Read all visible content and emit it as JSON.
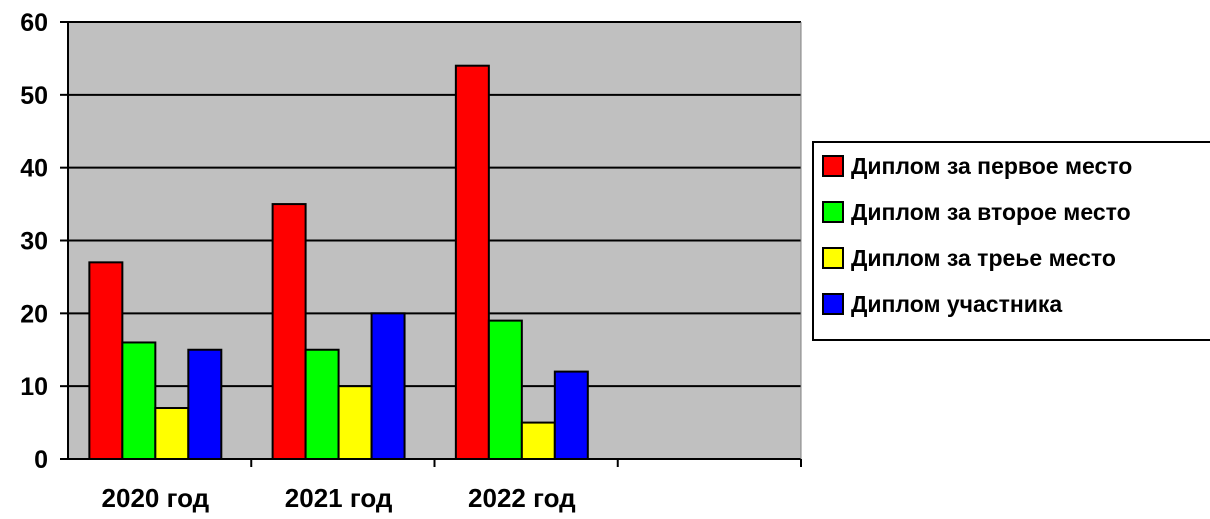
{
  "chart_data": {
    "type": "bar",
    "categories": [
      "2020 год",
      "2021 год",
      "2022 год",
      ""
    ],
    "series": [
      {
        "name": "Диплом за первое место",
        "color": "#ff0000",
        "values": [
          27,
          35,
          54,
          null
        ]
      },
      {
        "name": "Диплом за второе место",
        "color": "#00ff00",
        "values": [
          16,
          15,
          19,
          null
        ]
      },
      {
        "name": "Диплом за треье место",
        "color": "#ffff00",
        "values": [
          7,
          10,
          5,
          null
        ]
      },
      {
        "name": "Диплом участника",
        "color": "#0000ff",
        "values": [
          15,
          20,
          12,
          null
        ]
      }
    ],
    "ylim": [
      0,
      60
    ],
    "yticks": [
      0,
      10,
      20,
      30,
      40,
      50,
      60
    ],
    "title": "",
    "xlabel": "",
    "ylabel": "",
    "grid": "horizontal",
    "legend_position": "right",
    "plot_background": "#c0c0c0"
  }
}
